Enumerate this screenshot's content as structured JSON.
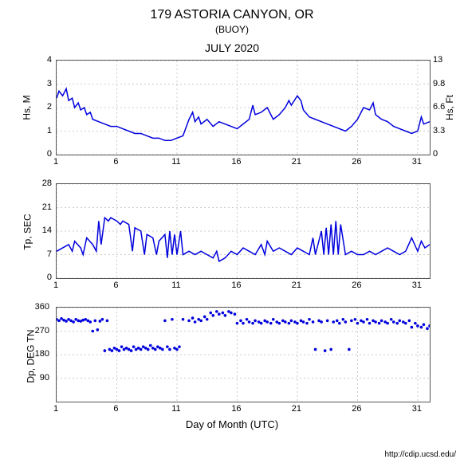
{
  "title": "179 ASTORIA CANYON, OR",
  "subtitle": "(BUOY)",
  "month": "JULY 2020",
  "xlabel": "Day of Month (UTC)",
  "credit": "http://cdip.ucsd.edu/",
  "x_ticks": [
    1,
    6,
    11,
    16,
    21,
    26,
    31
  ],
  "x_min": 1,
  "x_max": 32,
  "chart1": {
    "ylabel_left": "Hs, M",
    "ylabel_right": "Hs, Ft",
    "ylim": [
      0,
      4
    ],
    "yticks_left": [
      0,
      1,
      2,
      3,
      4
    ],
    "yticks_right": [
      0,
      3.3,
      6.6,
      9.8,
      13
    ],
    "color": "#0000dd",
    "grid_color": "#cccccc",
    "data": [
      [
        1,
        2.4
      ],
      [
        1.2,
        2.7
      ],
      [
        1.5,
        2.5
      ],
      [
        1.8,
        2.8
      ],
      [
        2,
        2.3
      ],
      [
        2.3,
        2.4
      ],
      [
        2.5,
        2.0
      ],
      [
        2.8,
        2.2
      ],
      [
        3,
        1.9
      ],
      [
        3.3,
        2.0
      ],
      [
        3.5,
        1.7
      ],
      [
        3.8,
        1.8
      ],
      [
        4,
        1.5
      ],
      [
        4.5,
        1.4
      ],
      [
        5,
        1.3
      ],
      [
        5.5,
        1.2
      ],
      [
        6,
        1.2
      ],
      [
        6.5,
        1.1
      ],
      [
        7,
        1.0
      ],
      [
        7.5,
        0.9
      ],
      [
        8,
        0.9
      ],
      [
        8.5,
        0.8
      ],
      [
        9,
        0.7
      ],
      [
        9.5,
        0.7
      ],
      [
        10,
        0.6
      ],
      [
        10.5,
        0.6
      ],
      [
        11,
        0.7
      ],
      [
        11.5,
        0.8
      ],
      [
        12,
        1.5
      ],
      [
        12.3,
        1.8
      ],
      [
        12.5,
        1.4
      ],
      [
        12.8,
        1.6
      ],
      [
        13,
        1.3
      ],
      [
        13.5,
        1.5
      ],
      [
        14,
        1.2
      ],
      [
        14.5,
        1.4
      ],
      [
        15,
        1.3
      ],
      [
        15.5,
        1.2
      ],
      [
        16,
        1.1
      ],
      [
        16.5,
        1.3
      ],
      [
        17,
        1.5
      ],
      [
        17.3,
        2.1
      ],
      [
        17.5,
        1.7
      ],
      [
        18,
        1.8
      ],
      [
        18.5,
        2.0
      ],
      [
        19,
        1.5
      ],
      [
        19.5,
        1.7
      ],
      [
        20,
        2.0
      ],
      [
        20.3,
        2.3
      ],
      [
        20.5,
        2.1
      ],
      [
        21,
        2.5
      ],
      [
        21.3,
        2.3
      ],
      [
        21.5,
        1.9
      ],
      [
        22,
        1.6
      ],
      [
        22.5,
        1.5
      ],
      [
        23,
        1.4
      ],
      [
        23.5,
        1.3
      ],
      [
        24,
        1.2
      ],
      [
        24.5,
        1.1
      ],
      [
        25,
        1.0
      ],
      [
        25.5,
        1.2
      ],
      [
        26,
        1.5
      ],
      [
        26.5,
        2.0
      ],
      [
        27,
        1.9
      ],
      [
        27.3,
        2.2
      ],
      [
        27.5,
        1.7
      ],
      [
        28,
        1.5
      ],
      [
        28.5,
        1.4
      ],
      [
        29,
        1.2
      ],
      [
        29.5,
        1.1
      ],
      [
        30,
        1.0
      ],
      [
        30.5,
        0.9
      ],
      [
        31,
        1.0
      ],
      [
        31.3,
        1.6
      ],
      [
        31.5,
        1.3
      ],
      [
        32,
        1.4
      ]
    ]
  },
  "chart2": {
    "ylabel": "Tp, SEC",
    "ylim": [
      0,
      28
    ],
    "yticks": [
      0,
      7,
      14,
      21,
      28
    ],
    "color": "#0000dd",
    "grid_color": "#cccccc",
    "data": [
      [
        1,
        8
      ],
      [
        1.5,
        9
      ],
      [
        2,
        10
      ],
      [
        2.3,
        8
      ],
      [
        2.5,
        11
      ],
      [
        3,
        9
      ],
      [
        3.2,
        7
      ],
      [
        3.5,
        12
      ],
      [
        4,
        10
      ],
      [
        4.3,
        8
      ],
      [
        4.5,
        17
      ],
      [
        4.7,
        10
      ],
      [
        5,
        18
      ],
      [
        5.3,
        17
      ],
      [
        5.5,
        18
      ],
      [
        6,
        17
      ],
      [
        6.3,
        16
      ],
      [
        6.5,
        17
      ],
      [
        7,
        16
      ],
      [
        7.3,
        8
      ],
      [
        7.5,
        15
      ],
      [
        8,
        14
      ],
      [
        8.3,
        7
      ],
      [
        8.5,
        13
      ],
      [
        9,
        12
      ],
      [
        9.3,
        7
      ],
      [
        9.5,
        11
      ],
      [
        10,
        13
      ],
      [
        10.2,
        6
      ],
      [
        10.4,
        14
      ],
      [
        10.6,
        7
      ],
      [
        10.8,
        13
      ],
      [
        11,
        7
      ],
      [
        11.3,
        14
      ],
      [
        11.5,
        7
      ],
      [
        12,
        8
      ],
      [
        12.5,
        7
      ],
      [
        13,
        8
      ],
      [
        13.5,
        7
      ],
      [
        14,
        6
      ],
      [
        14.3,
        8
      ],
      [
        14.5,
        5
      ],
      [
        15,
        6
      ],
      [
        15.5,
        8
      ],
      [
        16,
        7
      ],
      [
        16.5,
        9
      ],
      [
        17,
        8
      ],
      [
        17.5,
        7
      ],
      [
        18,
        10
      ],
      [
        18.3,
        7
      ],
      [
        18.5,
        11
      ],
      [
        19,
        8
      ],
      [
        19.5,
        9
      ],
      [
        20,
        8
      ],
      [
        20.5,
        7
      ],
      [
        21,
        9
      ],
      [
        21.5,
        8
      ],
      [
        22,
        7
      ],
      [
        22.3,
        12
      ],
      [
        22.5,
        7
      ],
      [
        23,
        14
      ],
      [
        23.2,
        7
      ],
      [
        23.4,
        15
      ],
      [
        23.6,
        7
      ],
      [
        23.8,
        16
      ],
      [
        24,
        7
      ],
      [
        24.2,
        17
      ],
      [
        24.4,
        7
      ],
      [
        24.6,
        16
      ],
      [
        25,
        7
      ],
      [
        25.5,
        8
      ],
      [
        26,
        7
      ],
      [
        26.5,
        7
      ],
      [
        27,
        8
      ],
      [
        27.5,
        7
      ],
      [
        28,
        8
      ],
      [
        28.5,
        9
      ],
      [
        29,
        8
      ],
      [
        29.5,
        7
      ],
      [
        30,
        8
      ],
      [
        30.5,
        12
      ],
      [
        31,
        8
      ],
      [
        31.3,
        11
      ],
      [
        31.6,
        9
      ],
      [
        32,
        10
      ]
    ]
  },
  "chart3": {
    "ylabel": "Dp, DEG TN",
    "ylim": [
      0,
      360
    ],
    "yticks": [
      90,
      180,
      270,
      360
    ],
    "color": "#0000dd",
    "grid_color": "#cccccc",
    "data": [
      [
        1,
        315
      ],
      [
        1.2,
        310
      ],
      [
        1.4,
        318
      ],
      [
        1.6,
        312
      ],
      [
        1.8,
        308
      ],
      [
        2,
        315
      ],
      [
        2.2,
        310
      ],
      [
        2.4,
        305
      ],
      [
        2.6,
        315
      ],
      [
        2.8,
        310
      ],
      [
        3,
        308
      ],
      [
        3.2,
        312
      ],
      [
        3.4,
        315
      ],
      [
        3.6,
        310
      ],
      [
        3.8,
        305
      ],
      [
        4,
        270
      ],
      [
        4.2,
        310
      ],
      [
        4.4,
        275
      ],
      [
        4.6,
        308
      ],
      [
        4.8,
        315
      ],
      [
        5,
        195
      ],
      [
        5.2,
        310
      ],
      [
        5.4,
        200
      ],
      [
        5.6,
        195
      ],
      [
        5.8,
        205
      ],
      [
        6,
        200
      ],
      [
        6.2,
        195
      ],
      [
        6.4,
        210
      ],
      [
        6.6,
        200
      ],
      [
        6.8,
        205
      ],
      [
        7,
        200
      ],
      [
        7.2,
        195
      ],
      [
        7.4,
        210
      ],
      [
        7.6,
        200
      ],
      [
        7.8,
        205
      ],
      [
        8,
        200
      ],
      [
        8.2,
        210
      ],
      [
        8.4,
        205
      ],
      [
        8.6,
        200
      ],
      [
        8.8,
        215
      ],
      [
        9,
        205
      ],
      [
        9.2,
        200
      ],
      [
        9.4,
        210
      ],
      [
        9.6,
        205
      ],
      [
        9.8,
        200
      ],
      [
        10,
        310
      ],
      [
        10.2,
        210
      ],
      [
        10.4,
        200
      ],
      [
        10.6,
        315
      ],
      [
        10.8,
        205
      ],
      [
        11,
        200
      ],
      [
        11.2,
        210
      ],
      [
        11.5,
        315
      ],
      [
        12,
        310
      ],
      [
        12.3,
        320
      ],
      [
        12.5,
        305
      ],
      [
        12.8,
        315
      ],
      [
        13,
        310
      ],
      [
        13.3,
        325
      ],
      [
        13.5,
        315
      ],
      [
        13.8,
        340
      ],
      [
        14,
        330
      ],
      [
        14.3,
        345
      ],
      [
        14.5,
        335
      ],
      [
        14.8,
        340
      ],
      [
        15,
        330
      ],
      [
        15.3,
        345
      ],
      [
        15.5,
        340
      ],
      [
        15.8,
        335
      ],
      [
        16,
        300
      ],
      [
        16.3,
        310
      ],
      [
        16.5,
        300
      ],
      [
        16.8,
        315
      ],
      [
        17,
        305
      ],
      [
        17.3,
        300
      ],
      [
        17.5,
        310
      ],
      [
        17.8,
        305
      ],
      [
        18,
        300
      ],
      [
        18.3,
        310
      ],
      [
        18.5,
        305
      ],
      [
        18.8,
        300
      ],
      [
        19,
        315
      ],
      [
        19.3,
        305
      ],
      [
        19.5,
        300
      ],
      [
        19.8,
        310
      ],
      [
        20,
        305
      ],
      [
        20.3,
        300
      ],
      [
        20.5,
        310
      ],
      [
        20.8,
        305
      ],
      [
        21,
        300
      ],
      [
        21.3,
        310
      ],
      [
        21.5,
        305
      ],
      [
        21.8,
        300
      ],
      [
        22,
        315
      ],
      [
        22.3,
        305
      ],
      [
        22.5,
        200
      ],
      [
        22.8,
        310
      ],
      [
        23,
        305
      ],
      [
        23.3,
        195
      ],
      [
        23.5,
        310
      ],
      [
        23.8,
        200
      ],
      [
        24,
        305
      ],
      [
        24.3,
        310
      ],
      [
        24.5,
        300
      ],
      [
        24.8,
        315
      ],
      [
        25,
        305
      ],
      [
        25.3,
        200
      ],
      [
        25.5,
        310
      ],
      [
        25.8,
        315
      ],
      [
        26,
        300
      ],
      [
        26.3,
        310
      ],
      [
        26.5,
        305
      ],
      [
        26.8,
        315
      ],
      [
        27,
        300
      ],
      [
        27.3,
        310
      ],
      [
        27.5,
        305
      ],
      [
        27.8,
        300
      ],
      [
        28,
        310
      ],
      [
        28.3,
        305
      ],
      [
        28.5,
        300
      ],
      [
        28.8,
        315
      ],
      [
        29,
        305
      ],
      [
        29.3,
        300
      ],
      [
        29.5,
        310
      ],
      [
        29.8,
        305
      ],
      [
        30,
        300
      ],
      [
        30.3,
        310
      ],
      [
        30.5,
        285
      ],
      [
        30.8,
        300
      ],
      [
        31,
        290
      ],
      [
        31.3,
        285
      ],
      [
        31.5,
        295
      ],
      [
        31.8,
        280
      ],
      [
        32,
        290
      ]
    ]
  }
}
